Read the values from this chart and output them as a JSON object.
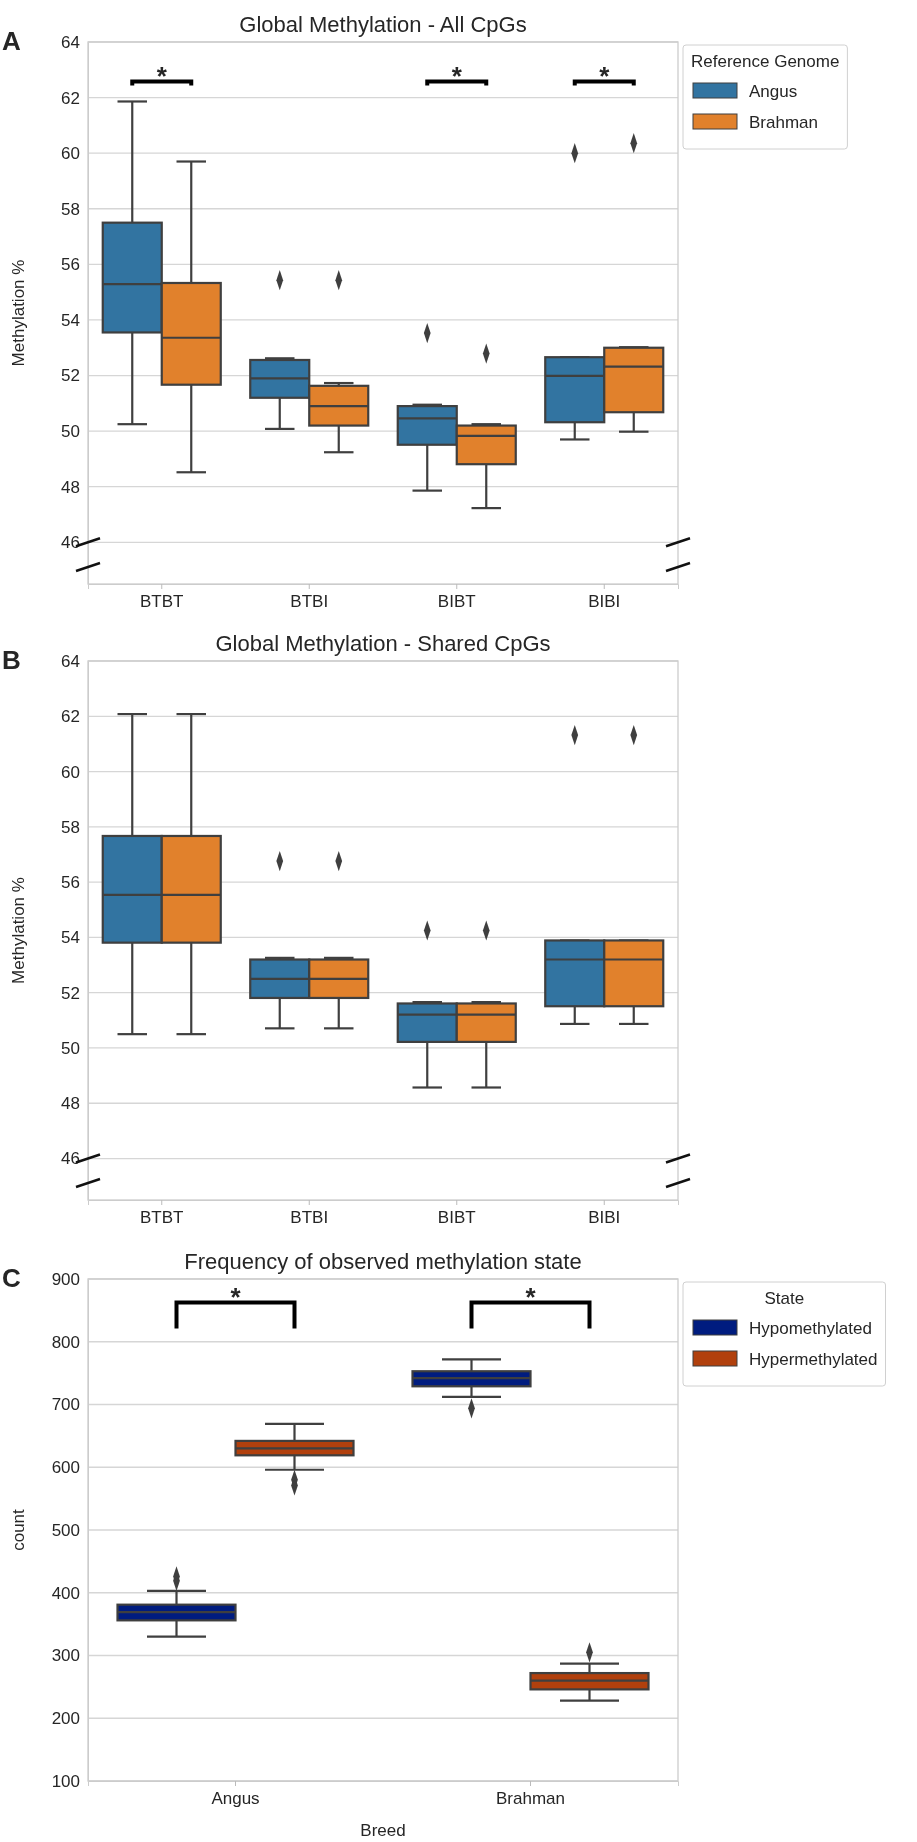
{
  "chart_data": [
    {
      "type": "box",
      "title": "Global Methylation - All CpGs",
      "ylabel": "Methylation %",
      "legend_title": "Reference Genome",
      "legend": "top right",
      "grid": "y",
      "marker": "diamond",
      "annotations": [
        "A",
        "*",
        "*",
        "*"
      ],
      "categories": [
        "BTBT",
        "BTBI",
        "BIBT",
        "BIBI"
      ],
      "ylim": [
        44.5,
        64
      ],
      "yticks": [
        46,
        48,
        50,
        52,
        54,
        56,
        58,
        60,
        62,
        64
      ],
      "series": [
        {
          "name": "Angus",
          "color": "#3274a1",
          "boxes": [
            {
              "low": 50.25,
              "q1": 53.55,
              "median": 55.29,
              "q3": 57.5,
              "high": 61.86
            },
            {
              "low": 50.08,
              "q1": 51.2,
              "median": 51.9,
              "q3": 52.56,
              "high": 52.62,
              "outliers": [
                55.43
              ]
            },
            {
              "low": 47.86,
              "q1": 49.51,
              "median": 50.46,
              "q3": 50.9,
              "high": 50.95,
              "outliers": [
                53.53
              ]
            },
            {
              "low": 49.7,
              "q1": 50.32,
              "median": 51.99,
              "q3": 52.66,
              "high": 52.66,
              "outliers": [
                60.0
              ]
            }
          ]
        },
        {
          "name": "Brahman",
          "color": "#e1812c",
          "boxes": [
            {
              "low": 48.52,
              "q1": 51.67,
              "median": 53.36,
              "q3": 55.33,
              "high": 59.7
            },
            {
              "low": 49.24,
              "q1": 50.2,
              "median": 50.9,
              "q3": 51.63,
              "high": 51.73,
              "outliers": [
                55.43
              ]
            },
            {
              "low": 47.23,
              "q1": 48.81,
              "median": 49.83,
              "q3": 50.2,
              "high": 50.25,
              "outliers": [
                52.79
              ]
            },
            {
              "low": 49.98,
              "q1": 50.68,
              "median": 52.32,
              "q3": 53.0,
              "high": 53.02,
              "outliers": [
                60.36
              ]
            }
          ]
        }
      ]
    },
    {
      "type": "box",
      "title": "Global Methylation - Shared CpGs",
      "ylabel": "Methylation %",
      "grid": "y",
      "marker": "diamond",
      "annotations": [
        "B"
      ],
      "categories": [
        "BTBT",
        "BTBI",
        "BIBT",
        "BIBI"
      ],
      "ylim": [
        44.5,
        64
      ],
      "yticks": [
        46,
        48,
        50,
        52,
        54,
        56,
        58,
        60,
        62,
        64
      ],
      "series": [
        {
          "color": "#3274a1",
          "boxes": [
            {
              "low": 50.5,
              "q1": 53.81,
              "median": 55.54,
              "q3": 57.67,
              "high": 62.08
            },
            {
              "low": 50.71,
              "q1": 51.81,
              "median": 52.5,
              "q3": 53.2,
              "high": 53.26,
              "outliers": [
                56.76
              ]
            },
            {
              "low": 48.57,
              "q1": 50.22,
              "median": 51.21,
              "q3": 51.61,
              "high": 51.66,
              "outliers": [
                54.25
              ]
            },
            {
              "low": 50.87,
              "q1": 51.51,
              "median": 53.2,
              "q3": 53.89,
              "high": 53.89,
              "outliers": [
                61.32
              ]
            }
          ]
        },
        {
          "color": "#e1812c",
          "boxes": [
            {
              "low": 50.5,
              "q1": 53.81,
              "median": 55.54,
              "q3": 57.67,
              "high": 62.08
            },
            {
              "low": 50.71,
              "q1": 51.81,
              "median": 52.5,
              "q3": 53.2,
              "high": 53.26,
              "outliers": [
                56.76
              ]
            },
            {
              "low": 48.57,
              "q1": 50.22,
              "median": 51.21,
              "q3": 51.61,
              "high": 51.66,
              "outliers": [
                54.25
              ]
            },
            {
              "low": 50.87,
              "q1": 51.51,
              "median": 53.2,
              "q3": 53.89,
              "high": 53.89,
              "outliers": [
                61.32
              ]
            }
          ]
        }
      ]
    },
    {
      "type": "box",
      "title": "Frequency of observed methylation state",
      "xlabel": "Breed",
      "ylabel": "count",
      "legend_title": "State",
      "legend": "top right",
      "grid": "y",
      "marker": "diamond",
      "annotations": [
        "C",
        "*",
        "*"
      ],
      "categories": [
        "Angus",
        "Brahman"
      ],
      "ylim": [
        100,
        900
      ],
      "yticks": [
        100,
        200,
        300,
        400,
        500,
        600,
        700,
        800,
        900
      ],
      "series": [
        {
          "name": "Hypomethylated",
          "color": "#001c7f",
          "boxes": [
            {
              "low": 330,
              "q1": 356,
              "median": 369,
              "q3": 381,
              "high": 403,
              "outliers": [
                419,
                426
              ]
            },
            {
              "low": 712,
              "q1": 729,
              "median": 742,
              "q3": 753,
              "high": 772,
              "outliers": [
                694
              ]
            }
          ]
        },
        {
          "name": "Hypermethylated",
          "color": "#b1400d",
          "boxes": [
            {
              "low": 596,
              "q1": 619,
              "median": 630,
              "q3": 642,
              "high": 669,
              "outliers": [
                571,
                580
              ]
            },
            {
              "low": 228,
              "q1": 246,
              "median": 260,
              "q3": 272,
              "high": 287,
              "outliers": [
                305
              ]
            }
          ]
        }
      ]
    }
  ]
}
